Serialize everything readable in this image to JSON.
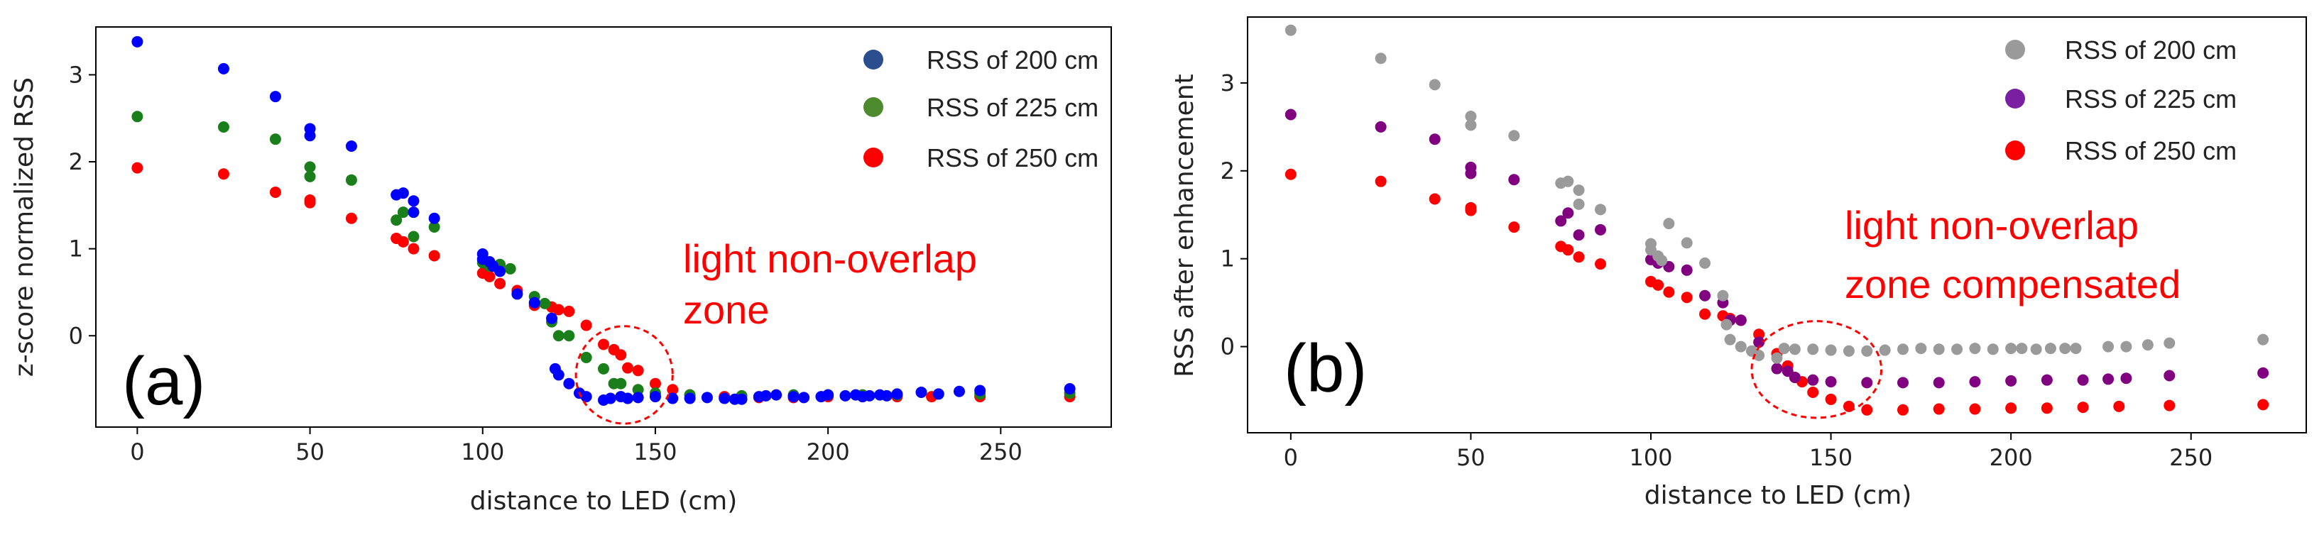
{
  "chart_data": [
    {
      "type": "scatter",
      "panel_label": "(a)",
      "xlabel": "distance to LED (cm)",
      "ylabel": "z-score normalized RSS",
      "xlim": [
        -12,
        282
      ],
      "ylim": [
        -1.05,
        3.55
      ],
      "xticks": [
        0,
        50,
        100,
        150,
        200,
        250
      ],
      "yticks": [
        0,
        1,
        2,
        3
      ],
      "legend_position": "top-right",
      "annotation": {
        "lines": [
          "light non-overlap",
          "zone"
        ],
        "circle_center": [
          141,
          -0.45
        ],
        "circle_radius_x": 14,
        "circle_radius_y": 0.56
      },
      "series": [
        {
          "name": "RSS of 200 cm",
          "color": "#0000ff",
          "legend_color": "#2b4f8e",
          "x": [
            0,
            25,
            40,
            50,
            50,
            62,
            75,
            77,
            80,
            80,
            86,
            100,
            100,
            102,
            103,
            105,
            110,
            115,
            120,
            121,
            122,
            125,
            128,
            130,
            135,
            137,
            140,
            142,
            145,
            150,
            155,
            160,
            165,
            170,
            173,
            175,
            180,
            182,
            185,
            190,
            193,
            198,
            200,
            205,
            208,
            210,
            212,
            215,
            217,
            220,
            227,
            232,
            238,
            244,
            270
          ],
          "y": [
            3.38,
            3.07,
            2.75,
            2.38,
            2.3,
            2.18,
            1.62,
            1.64,
            1.55,
            1.42,
            1.35,
            0.94,
            0.88,
            0.85,
            0.8,
            0.74,
            0.48,
            0.38,
            0.2,
            -0.38,
            -0.45,
            -0.55,
            -0.66,
            -0.7,
            -0.74,
            -0.72,
            -0.7,
            -0.72,
            -0.71,
            -0.7,
            -0.72,
            -0.72,
            -0.71,
            -0.72,
            -0.73,
            -0.73,
            -0.7,
            -0.69,
            -0.68,
            -0.7,
            -0.71,
            -0.7,
            -0.68,
            -0.69,
            -0.68,
            -0.7,
            -0.69,
            -0.68,
            -0.69,
            -0.67,
            -0.65,
            -0.67,
            -0.64,
            -0.63,
            -0.61
          ]
        },
        {
          "name": "RSS of 225 cm",
          "color": "#1a7f1a",
          "legend_color": "#4e8a2e",
          "x": [
            0,
            25,
            40,
            50,
            50,
            62,
            75,
            77,
            80,
            86,
            100,
            102,
            105,
            108,
            115,
            118,
            120,
            122,
            125,
            130,
            135,
            138,
            140,
            145,
            150,
            160,
            175,
            190,
            200,
            210,
            220,
            244,
            270
          ],
          "y": [
            2.52,
            2.4,
            2.26,
            1.94,
            1.83,
            1.79,
            1.33,
            1.42,
            1.14,
            1.25,
            0.84,
            0.8,
            0.82,
            0.77,
            0.45,
            0.37,
            0.16,
            0.0,
            0.0,
            -0.25,
            -0.38,
            -0.55,
            -0.55,
            -0.62,
            -0.66,
            -0.68,
            -0.69,
            -0.68,
            -0.68,
            -0.68,
            -0.68,
            -0.67,
            -0.66
          ]
        },
        {
          "name": "RSS of 250 cm",
          "color": "#ff0000",
          "legend_color": "#ff0000",
          "x": [
            0,
            25,
            40,
            50,
            50,
            62,
            75,
            77,
            80,
            86,
            100,
            102,
            105,
            110,
            115,
            120,
            122,
            125,
            130,
            135,
            138,
            140,
            142,
            145,
            150,
            155,
            160,
            170,
            180,
            190,
            200,
            210,
            220,
            230,
            244,
            270
          ],
          "y": [
            1.93,
            1.86,
            1.65,
            1.56,
            1.53,
            1.35,
            1.12,
            1.08,
            1.0,
            0.92,
            0.72,
            0.68,
            0.6,
            0.52,
            0.35,
            0.33,
            0.3,
            0.28,
            0.12,
            -0.1,
            -0.16,
            -0.22,
            -0.37,
            -0.4,
            -0.55,
            -0.62,
            -0.68,
            -0.7,
            -0.71,
            -0.71,
            -0.7,
            -0.7,
            -0.7,
            -0.7,
            -0.7,
            -0.7
          ]
        }
      ]
    },
    {
      "type": "scatter",
      "panel_label": "(b)",
      "xlabel": "distance to LED (cm)",
      "ylabel": "RSS after enhancement",
      "xlim": [
        -12,
        282
      ],
      "ylim": [
        -0.98,
        3.75
      ],
      "xticks": [
        0,
        50,
        100,
        150,
        200,
        250
      ],
      "yticks": [
        0,
        1,
        2,
        3
      ],
      "legend_position": "top-right",
      "annotation": {
        "lines": [
          "light non-overlap",
          "zone compensated"
        ],
        "circle_center": [
          146,
          -0.26
        ],
        "circle_radius_x": 18,
        "circle_radius_y": 0.55
      },
      "series": [
        {
          "name": "RSS of 200 cm",
          "color": "#9a9a9a",
          "legend_color": "#9a9a9a",
          "x": [
            0,
            25,
            40,
            50,
            50,
            62,
            75,
            77,
            80,
            80,
            86,
            100,
            100,
            102,
            103,
            105,
            110,
            115,
            120,
            121,
            122,
            125,
            128,
            130,
            135,
            137,
            140,
            145,
            150,
            155,
            160,
            165,
            170,
            175,
            180,
            185,
            190,
            195,
            200,
            203,
            207,
            211,
            215,
            218,
            227,
            232,
            238,
            244,
            270
          ],
          "y": [
            3.6,
            3.28,
            2.98,
            2.62,
            2.52,
            2.4,
            1.86,
            1.88,
            1.78,
            1.62,
            1.56,
            1.17,
            1.1,
            1.03,
            0.98,
            1.4,
            1.18,
            0.95,
            0.58,
            0.25,
            0.08,
            0.0,
            -0.05,
            -0.1,
            -0.13,
            -0.02,
            -0.03,
            -0.03,
            -0.04,
            -0.05,
            -0.05,
            -0.04,
            -0.03,
            -0.02,
            -0.03,
            -0.03,
            -0.02,
            -0.03,
            -0.02,
            -0.02,
            -0.03,
            -0.02,
            -0.02,
            -0.02,
            0.0,
            0.0,
            0.02,
            0.04,
            0.08
          ]
        },
        {
          "name": "RSS of 225 cm",
          "color": "#800080",
          "legend_color": "#7b1fa2",
          "x": [
            0,
            25,
            40,
            50,
            50,
            62,
            75,
            77,
            80,
            86,
            100,
            102,
            105,
            110,
            115,
            120,
            122,
            125,
            130,
            135,
            138,
            140,
            145,
            150,
            160,
            170,
            180,
            190,
            200,
            210,
            220,
            227,
            232,
            244,
            270
          ],
          "y": [
            2.64,
            2.5,
            2.36,
            2.04,
            1.97,
            1.9,
            1.43,
            1.52,
            1.27,
            1.33,
            0.99,
            0.95,
            0.91,
            0.87,
            0.58,
            0.5,
            0.3,
            0.3,
            0.05,
            -0.25,
            -0.28,
            -0.35,
            -0.38,
            -0.4,
            -0.41,
            -0.41,
            -0.41,
            -0.4,
            -0.39,
            -0.38,
            -0.38,
            -0.37,
            -0.36,
            -0.33,
            -0.3
          ]
        },
        {
          "name": "RSS of 250 cm",
          "color": "#ff0000",
          "legend_color": "#ff0000",
          "x": [
            0,
            25,
            40,
            50,
            50,
            62,
            75,
            77,
            80,
            86,
            100,
            102,
            105,
            110,
            115,
            120,
            122,
            125,
            130,
            135,
            138,
            140,
            142,
            145,
            150,
            155,
            160,
            170,
            180,
            190,
            200,
            210,
            220,
            230,
            244,
            270
          ],
          "y": [
            1.96,
            1.88,
            1.68,
            1.58,
            1.55,
            1.36,
            1.14,
            1.1,
            1.02,
            0.94,
            0.74,
            0.7,
            0.62,
            0.56,
            0.37,
            0.35,
            0.32,
            0.3,
            0.14,
            -0.08,
            -0.22,
            -0.35,
            -0.4,
            -0.52,
            -0.6,
            -0.68,
            -0.72,
            -0.72,
            -0.71,
            -0.71,
            -0.7,
            -0.7,
            -0.69,
            -0.68,
            -0.67,
            -0.66
          ]
        }
      ]
    }
  ]
}
